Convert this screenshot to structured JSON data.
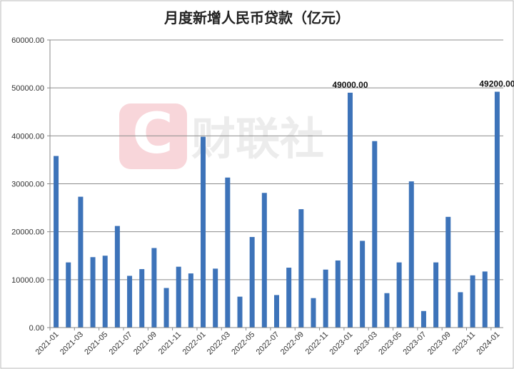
{
  "chart_data": {
    "type": "bar",
    "title": "月度新增人民币贷款（亿元）",
    "xlabel": "",
    "ylabel": "",
    "ylim": [
      0,
      60000
    ],
    "yticks": [
      "0.00",
      "10000.00",
      "20000.00",
      "30000.00",
      "40000.00",
      "50000.00",
      "60000.00"
    ],
    "grid": true,
    "bar_color": "#3d73b9",
    "categories": [
      "2021-01",
      "2021-02",
      "2021-03",
      "2021-04",
      "2021-05",
      "2021-06",
      "2021-07",
      "2021-08",
      "2021-09",
      "2021-10",
      "2021-11",
      "2021-12",
      "2022-01",
      "2022-02",
      "2022-03",
      "2022-04",
      "2022-05",
      "2022-06",
      "2022-07",
      "2022-08",
      "2022-09",
      "2022-10",
      "2022-11",
      "2022-12",
      "2023-01",
      "2023-02",
      "2023-03",
      "2023-04",
      "2023-05",
      "2023-06",
      "2023-07",
      "2023-08",
      "2023-09",
      "2023-10",
      "2023-11",
      "2023-12",
      "2024-01"
    ],
    "values": [
      35800,
      13600,
      27300,
      14700,
      15000,
      21200,
      10800,
      12200,
      16600,
      8262,
      12700,
      11300,
      39800,
      12300,
      31300,
      6454,
      18900,
      28100,
      6790,
      12500,
      24700,
      6152,
      12100,
      14000,
      49000,
      18100,
      38900,
      7188,
      13600,
      30500,
      3459,
      13600,
      23100,
      7384,
      10900,
      11700,
      49200
    ],
    "data_labels": [
      {
        "category": "2023-01",
        "text": "49000.00"
      },
      {
        "category": "2024-01",
        "text": "49200.00"
      }
    ]
  },
  "watermark": {
    "text": "财联社",
    "logo_letter": "C",
    "logo_color": "#f7d4d8"
  }
}
